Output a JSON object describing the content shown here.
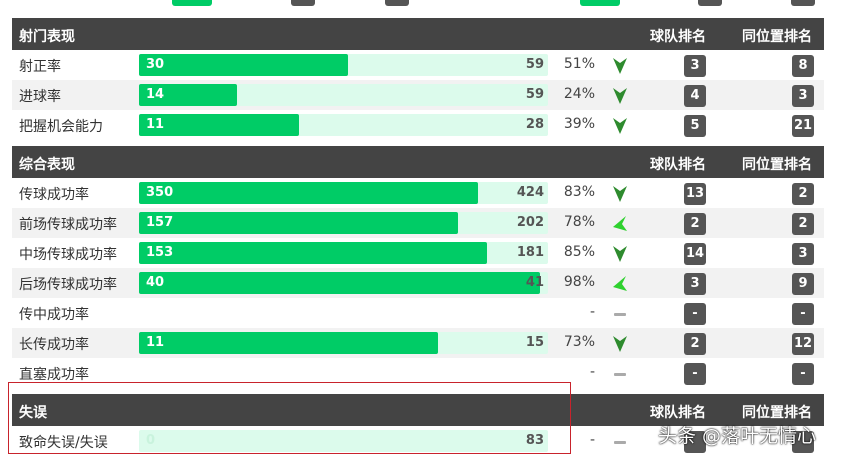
{
  "sections": [
    {
      "title": "射门表现",
      "col1": "球队排名",
      "col2": "同位置排名",
      "rows": [
        {
          "label": "射正率",
          "value": "30",
          "total": "59",
          "fill": 0.51,
          "pct": "51%",
          "trend": "down",
          "team_rank": "3",
          "pos_rank": "8"
        },
        {
          "label": "进球率",
          "value": "14",
          "total": "59",
          "fill": 0.24,
          "pct": "24%",
          "trend": "down",
          "team_rank": "4",
          "pos_rank": "3"
        },
        {
          "label": "把握机会能力",
          "value": "11",
          "total": "28",
          "fill": 0.39,
          "pct": "39%",
          "trend": "down",
          "team_rank": "5",
          "pos_rank": "21"
        }
      ]
    },
    {
      "title": "综合表现",
      "col1": "球队排名",
      "col2": "同位置排名",
      "rows": [
        {
          "label": "传球成功率",
          "value": "350",
          "total": "424",
          "fill": 0.83,
          "pct": "83%",
          "trend": "down",
          "team_rank": "13",
          "pos_rank": "2"
        },
        {
          "label": "前场传球成功率",
          "value": "157",
          "total": "202",
          "fill": 0.78,
          "pct": "78%",
          "trend": "down-left",
          "team_rank": "2",
          "pos_rank": "2"
        },
        {
          "label": "中场传球成功率",
          "value": "153",
          "total": "181",
          "fill": 0.85,
          "pct": "85%",
          "trend": "down",
          "team_rank": "14",
          "pos_rank": "3"
        },
        {
          "label": "后场传球成功率",
          "value": "40",
          "total": "41",
          "fill": 0.98,
          "pct": "98%",
          "trend": "down-left",
          "team_rank": "3",
          "pos_rank": "9"
        },
        {
          "label": "传中成功率",
          "value": null,
          "total": null,
          "fill": null,
          "pct": "-",
          "trend": "flat",
          "team_rank": "-",
          "pos_rank": "-"
        },
        {
          "label": "长传成功率",
          "value": "11",
          "total": "15",
          "fill": 0.73,
          "pct": "73%",
          "trend": "down",
          "team_rank": "2",
          "pos_rank": "12"
        },
        {
          "label": "直塞成功率",
          "value": null,
          "total": null,
          "fill": null,
          "pct": "-",
          "trend": "flat",
          "team_rank": "-",
          "pos_rank": "-"
        }
      ]
    },
    {
      "title": "失误",
      "col1": "球队排名",
      "col2": "同位置排名",
      "rows": [
        {
          "label": "致命失误/失误",
          "value": "0",
          "total": "83",
          "fill": 0,
          "pct": "-",
          "trend": "flat",
          "team_rank": "",
          "pos_rank": ""
        }
      ]
    }
  ],
  "watermark": "头条 @落叶无情心",
  "colors": {
    "bar_fill": "#00cc66",
    "bar_track": "#dcfbec",
    "header_bg": "#444444",
    "badge": "#555555",
    "highlight": "#c8232c"
  }
}
